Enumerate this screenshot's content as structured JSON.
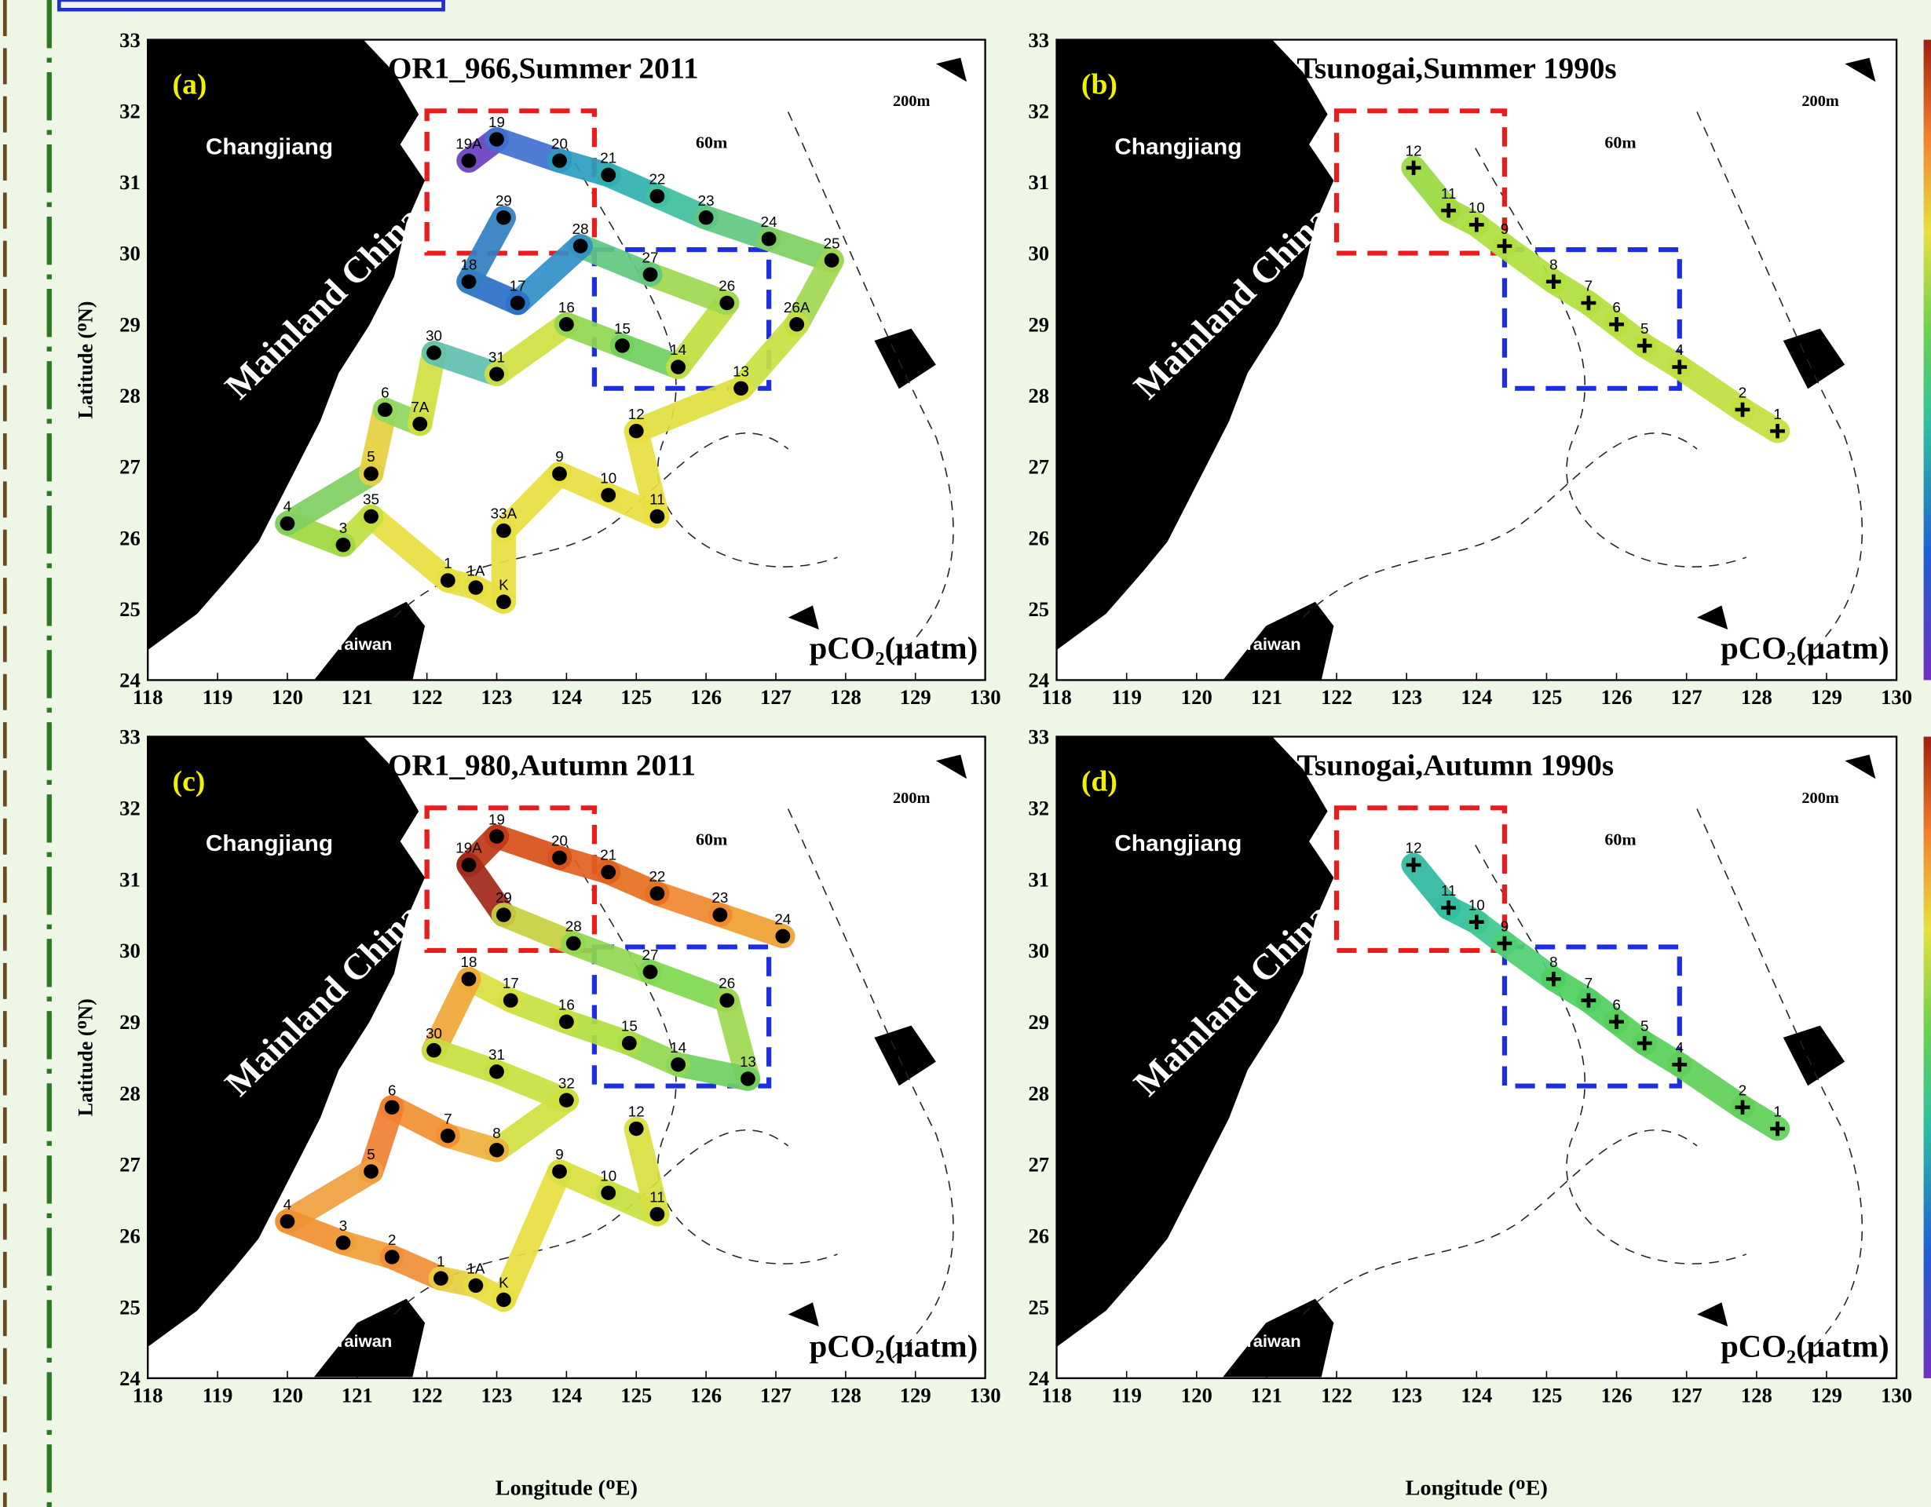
{
  "axes": {
    "xlabel": "Longitude (ᴼE)",
    "ylabel": "Latitude (ᴼN)",
    "xlim": [
      118,
      130
    ],
    "ylim": [
      24,
      33
    ],
    "xticks": [
      118,
      119,
      120,
      121,
      122,
      123,
      124,
      125,
      126,
      127,
      128,
      129,
      130
    ],
    "yticks": [
      24,
      25,
      26,
      27,
      28,
      29,
      30,
      31,
      32,
      33
    ]
  },
  "place_labels": {
    "river": "Changjiang",
    "mainland": "Mainland China",
    "island": "Taiwan",
    "depth_outer": "200m",
    "depth_inner": "60m",
    "unit": "pCO₂(µatm)"
  },
  "regions": [
    {
      "color": "#e81c1c",
      "lon": [
        122,
        124.4
      ],
      "lat": [
        30.0,
        32.0
      ]
    },
    {
      "color": "#1c2ee0",
      "lon": [
        124.4,
        126.9
      ],
      "lat": [
        28.1,
        30.05
      ]
    }
  ],
  "panels": [
    {
      "label": "(a)",
      "title": "OR1_966,Summer 2011",
      "marker": "dot",
      "stations": [
        {
          "name": "19A",
          "lon": 122.6,
          "lat": 31.3,
          "color": "#6a3fc0"
        },
        {
          "name": "19",
          "lon": 123.0,
          "lat": 31.6,
          "color": "#4070d0"
        },
        {
          "name": "20",
          "lon": 123.9,
          "lat": 31.3,
          "color": "#2b9ec0"
        },
        {
          "name": "21",
          "lon": 124.6,
          "lat": 31.1,
          "color": "#30b0b0"
        },
        {
          "name": "22",
          "lon": 125.3,
          "lat": 30.8,
          "color": "#40c0a0"
        },
        {
          "name": "23",
          "lon": 126.0,
          "lat": 30.5,
          "color": "#60c880"
        },
        {
          "name": "24",
          "lon": 126.9,
          "lat": 30.2,
          "color": "#80d060"
        },
        {
          "name": "25",
          "lon": 127.8,
          "lat": 29.9,
          "color": "#a0d850"
        },
        {
          "name": "26A",
          "lon": 127.3,
          "lat": 29.0,
          "color": "#c8e040"
        },
        {
          "name": "13",
          "lon": 126.5,
          "lat": 28.1,
          "color": "#e0e040"
        },
        {
          "name": "12",
          "lon": 125.0,
          "lat": 27.5,
          "color": "#e8e040"
        },
        {
          "name": "11",
          "lon": 125.3,
          "lat": 26.3,
          "color": "#e8e040"
        },
        {
          "name": "10",
          "lon": 124.6,
          "lat": 26.6,
          "color": "#e8e040"
        },
        {
          "name": "9",
          "lon": 123.9,
          "lat": 26.9,
          "color": "#e8e040"
        },
        {
          "name": "33A",
          "lon": 123.1,
          "lat": 26.1,
          "color": "#e8e040"
        },
        {
          "name": "K",
          "lon": 123.1,
          "lat": 25.1,
          "color": "#e8e040"
        },
        {
          "name": "1A",
          "lon": 122.7,
          "lat": 25.3,
          "color": "#e8e040"
        },
        {
          "name": "1",
          "lon": 122.3,
          "lat": 25.4,
          "color": "#e8e040"
        },
        {
          "name": "35",
          "lon": 121.2,
          "lat": 26.3,
          "color": "#c0e040"
        },
        {
          "name": "3",
          "lon": 120.8,
          "lat": 25.9,
          "color": "#a0d840"
        },
        {
          "name": "4",
          "lon": 120.0,
          "lat": 26.2,
          "color": "#80d060"
        },
        {
          "name": "5",
          "lon": 121.2,
          "lat": 26.9,
          "color": "#e8d040"
        },
        {
          "name": "6",
          "lon": 121.4,
          "lat": 27.8,
          "color": "#90d860"
        },
        {
          "name": "7A",
          "lon": 121.9,
          "lat": 27.6,
          "color": "#d0e040"
        },
        {
          "name": "30",
          "lon": 122.1,
          "lat": 28.6,
          "color": "#60c0b0"
        },
        {
          "name": "31",
          "lon": 123.0,
          "lat": 28.3,
          "color": "#d0e040"
        },
        {
          "name": "16",
          "lon": 124.0,
          "lat": 29.0,
          "color": "#90d850"
        },
        {
          "name": "15",
          "lon": 124.8,
          "lat": 28.7,
          "color": "#70d060"
        },
        {
          "name": "14",
          "lon": 125.6,
          "lat": 28.4,
          "color": "#c0e040"
        },
        {
          "name": "26",
          "lon": 126.3,
          "lat": 29.3,
          "color": "#a0d850"
        },
        {
          "name": "27",
          "lon": 125.2,
          "lat": 29.7,
          "color": "#60c880"
        },
        {
          "name": "28",
          "lon": 124.2,
          "lat": 30.1,
          "color": "#3090c8"
        },
        {
          "name": "17",
          "lon": 123.3,
          "lat": 29.3,
          "color": "#2a70c8"
        },
        {
          "name": "18",
          "lon": 122.6,
          "lat": 29.6,
          "color": "#3080c0"
        },
        {
          "name": "29",
          "lon": 123.1,
          "lat": 30.5,
          "color": "#60c080"
        }
      ]
    },
    {
      "label": "(b)",
      "title": "Tsunogai,Summer 1990s",
      "marker": "plus",
      "stations": [
        {
          "name": "12",
          "lon": 123.1,
          "lat": 31.2,
          "color": "#9ad840"
        },
        {
          "name": "11",
          "lon": 123.6,
          "lat": 30.6,
          "color": "#a6dc40"
        },
        {
          "name": "10",
          "lon": 124.0,
          "lat": 30.4,
          "color": "#b0e040"
        },
        {
          "name": "9",
          "lon": 124.4,
          "lat": 30.1,
          "color": "#b0e040"
        },
        {
          "name": "8",
          "lon": 125.1,
          "lat": 29.6,
          "color": "#b0e040"
        },
        {
          "name": "7",
          "lon": 125.6,
          "lat": 29.3,
          "color": "#b4e040"
        },
        {
          "name": "6",
          "lon": 126.0,
          "lat": 29.0,
          "color": "#b8e040"
        },
        {
          "name": "5",
          "lon": 126.4,
          "lat": 28.7,
          "color": "#bce040"
        },
        {
          "name": "4",
          "lon": 126.9,
          "lat": 28.4,
          "color": "#c0e040"
        },
        {
          "name": "2",
          "lon": 127.8,
          "lat": 27.8,
          "color": "#c4e040"
        },
        {
          "name": "1",
          "lon": 128.3,
          "lat": 27.5,
          "color": "#c8e040"
        }
      ]
    },
    {
      "label": "(c)",
      "title": "OR1_980,Autumn 2011",
      "marker": "dot",
      "stations": [
        {
          "name": "24",
          "lon": 127.1,
          "lat": 30.2,
          "color": "#f0a030"
        },
        {
          "name": "23",
          "lon": 126.2,
          "lat": 30.5,
          "color": "#f08830"
        },
        {
          "name": "22",
          "lon": 125.3,
          "lat": 30.8,
          "color": "#e87020"
        },
        {
          "name": "21",
          "lon": 124.6,
          "lat": 31.1,
          "color": "#e06020"
        },
        {
          "name": "20",
          "lon": 123.9,
          "lat": 31.3,
          "color": "#d85018"
        },
        {
          "name": "19",
          "lon": 123.0,
          "lat": 31.6,
          "color": "#c03818"
        },
        {
          "name": "19A",
          "lon": 122.6,
          "lat": 31.2,
          "color": "#a02818"
        },
        {
          "name": "29",
          "lon": 123.1,
          "lat": 30.5,
          "color": "#c8d040"
        },
        {
          "name": "28",
          "lon": 124.1,
          "lat": 30.1,
          "color": "#90d850"
        },
        {
          "name": "27",
          "lon": 125.2,
          "lat": 29.7,
          "color": "#80d850"
        },
        {
          "name": "26",
          "lon": 126.3,
          "lat": 29.3,
          "color": "#a0d850"
        },
        {
          "name": "13",
          "lon": 126.6,
          "lat": 28.2,
          "color": "#70d060"
        },
        {
          "name": "14",
          "lon": 125.6,
          "lat": 28.4,
          "color": "#90d850"
        },
        {
          "name": "15",
          "lon": 124.9,
          "lat": 28.7,
          "color": "#b0e040"
        },
        {
          "name": "16",
          "lon": 124.0,
          "lat": 29.0,
          "color": "#c8e040"
        },
        {
          "name": "17",
          "lon": 123.2,
          "lat": 29.3,
          "color": "#d8e040"
        },
        {
          "name": "18",
          "lon": 122.6,
          "lat": 29.6,
          "color": "#f0a838"
        },
        {
          "name": "30",
          "lon": 122.1,
          "lat": 28.6,
          "color": "#c8e040"
        },
        {
          "name": "31",
          "lon": 123.0,
          "lat": 28.3,
          "color": "#c8e040"
        },
        {
          "name": "32",
          "lon": 124.0,
          "lat": 27.9,
          "color": "#d0e040"
        },
        {
          "name": "8",
          "lon": 123.0,
          "lat": 27.2,
          "color": "#f0b040"
        },
        {
          "name": "7",
          "lon": 122.3,
          "lat": 27.4,
          "color": "#f09030"
        },
        {
          "name": "6",
          "lon": 121.5,
          "lat": 27.8,
          "color": "#f08030"
        },
        {
          "name": "5",
          "lon": 121.2,
          "lat": 26.9,
          "color": "#f0a040"
        },
        {
          "name": "4",
          "lon": 120.0,
          "lat": 26.2,
          "color": "#f09030"
        },
        {
          "name": "3",
          "lon": 120.8,
          "lat": 25.9,
          "color": "#f0a038"
        },
        {
          "name": "2",
          "lon": 121.5,
          "lat": 25.7,
          "color": "#f09038"
        },
        {
          "name": "1",
          "lon": 122.2,
          "lat": 25.4,
          "color": "#e8d040"
        },
        {
          "name": "1A",
          "lon": 122.7,
          "lat": 25.3,
          "color": "#e8e040"
        },
        {
          "name": "K",
          "lon": 123.1,
          "lat": 25.1,
          "color": "#e8e040"
        },
        {
          "name": "9",
          "lon": 123.9,
          "lat": 26.9,
          "color": "#d8e040"
        },
        {
          "name": "10",
          "lon": 124.6,
          "lat": 26.6,
          "color": "#c8e040"
        },
        {
          "name": "11",
          "lon": 125.3,
          "lat": 26.3,
          "color": "#d8e040"
        },
        {
          "name": "12",
          "lon": 125.0,
          "lat": 27.5,
          "color": "#e8e040"
        }
      ]
    },
    {
      "label": "(d)",
      "title": "Tsunogai,Autumn 1990s",
      "marker": "plus",
      "stations": [
        {
          "name": "12",
          "lon": 123.1,
          "lat": 31.2,
          "color": "#30b8a0"
        },
        {
          "name": "11",
          "lon": 123.6,
          "lat": 30.6,
          "color": "#30c0a0"
        },
        {
          "name": "10",
          "lon": 124.0,
          "lat": 30.4,
          "color": "#40c890"
        },
        {
          "name": "9",
          "lon": 124.4,
          "lat": 30.1,
          "color": "#50d070"
        },
        {
          "name": "8",
          "lon": 125.1,
          "lat": 29.6,
          "color": "#50d060"
        },
        {
          "name": "7",
          "lon": 125.6,
          "lat": 29.3,
          "color": "#50d060"
        },
        {
          "name": "6",
          "lon": 126.0,
          "lat": 29.0,
          "color": "#58d058"
        },
        {
          "name": "5",
          "lon": 126.4,
          "lat": 28.7,
          "color": "#58d058"
        },
        {
          "name": "4",
          "lon": 126.9,
          "lat": 28.4,
          "color": "#60d058"
        },
        {
          "name": "2",
          "lon": 127.8,
          "lat": 27.8,
          "color": "#60d058"
        },
        {
          "name": "1",
          "lon": 128.3,
          "lat": 27.5,
          "color": "#60d058"
        }
      ]
    }
  ]
}
